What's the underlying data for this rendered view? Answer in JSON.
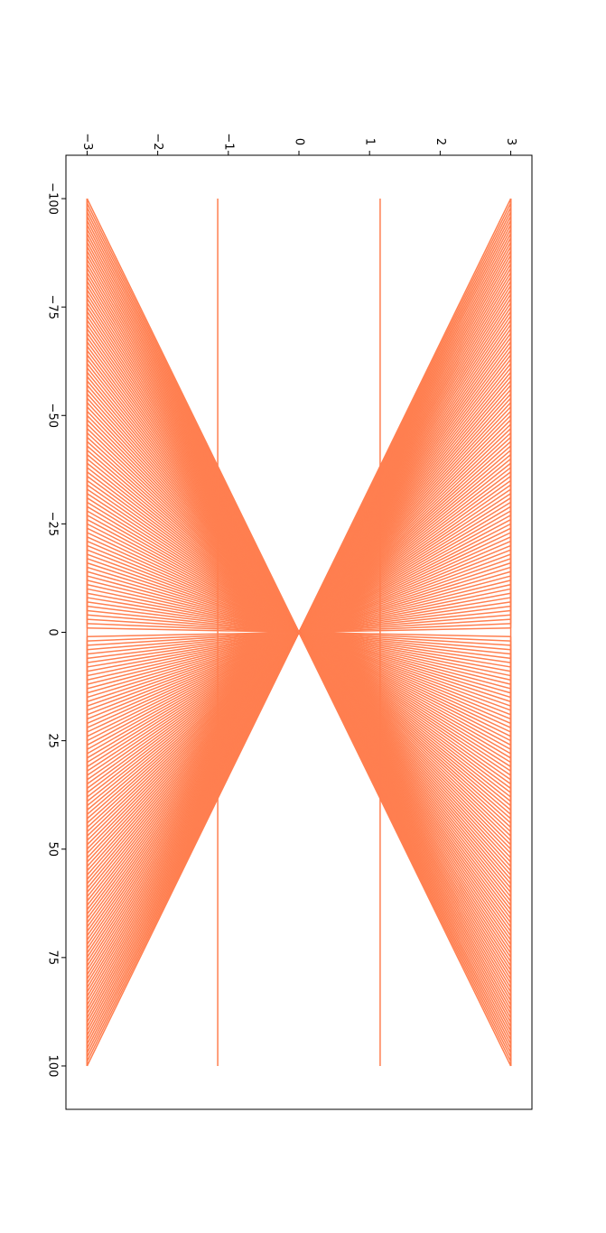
{
  "chart_data": {
    "type": "line",
    "orientation": "rotated-90-clockwise",
    "title": "",
    "xlabel": "",
    "ylabel": "",
    "grid": false,
    "legend": "none",
    "line_color": "#ff7f50",
    "xlim": [
      -110,
      110
    ],
    "ylim": [
      -3.3,
      3.3
    ],
    "x_ticks": [
      -100,
      -75,
      -50,
      -25,
      0,
      25,
      50,
      75,
      100
    ],
    "x_tick_labels": [
      "−100",
      "−75",
      "−50",
      "−25",
      "0",
      "25",
      "50",
      "75",
      "100"
    ],
    "y_ticks": [
      -3,
      -2,
      -1,
      0,
      1,
      2,
      3
    ],
    "y_tick_labels": [
      "−3",
      "−2",
      "−1",
      "0",
      "1",
      "2",
      "3"
    ],
    "series": [
      {
        "description": "fan of straight lines y = ±3·x/k through the origin, k from -100 to 100 step 1 (clipped to |y| ≤ 3)",
        "k_min": -100,
        "k_max": 100,
        "k_step": 1,
        "amplitude": 3
      },
      {
        "description": "horizontal lines",
        "y_values": [
          1.15,
          -1.15
        ],
        "x_range": [
          -100,
          100
        ]
      }
    ]
  }
}
